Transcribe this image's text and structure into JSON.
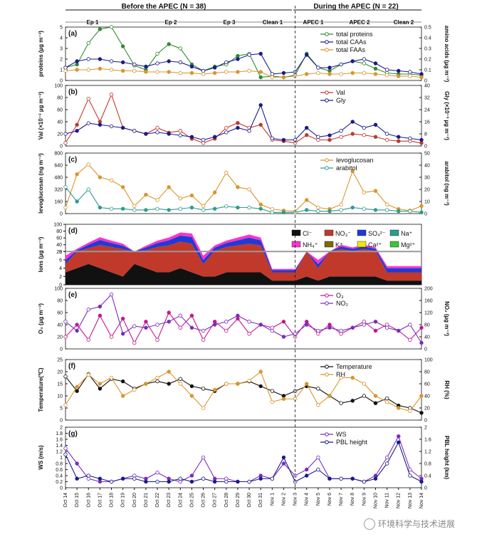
{
  "header": {
    "before_label": "Before the APEC (N = 38)",
    "during_label": "During the APEC (N = 22)",
    "episodes": [
      "Ep 1",
      "Ep 2",
      "Ep 3",
      "Clean 1",
      "APEC 1",
      "APEC 2",
      "Clean 2"
    ]
  },
  "dates": [
    "Oct 14",
    "Oct 15",
    "Oct 16",
    "Oct 17",
    "Oct 18",
    "Oct 19",
    "Oct 20",
    "Oct 21",
    "Oct 22",
    "Oct 23",
    "Oct 24",
    "Oct 25",
    "Oct 26",
    "Oct 27",
    "Oct 28",
    "Oct 29",
    "Oct 30",
    "Oct 31",
    "Nov 1",
    "Nov 2",
    "Nov 3",
    "Nov 4",
    "Nov 5",
    "Nov 6",
    "Nov 7",
    "Nov 8",
    "Nov 9",
    "Nov 10",
    "Nov 11",
    "Nov 12",
    "Nov 13",
    "Nov 14"
  ],
  "watermark": "环境科学与技术进展",
  "colors": {
    "green": "#2e8b2e",
    "navy": "#1a1a8c",
    "orange": "#d9952b",
    "red": "#c0392b",
    "teal": "#2a9d8f",
    "magenta": "#c2188f",
    "purple": "#7b2cbf",
    "black": "#111111",
    "blue": "#1f3bd6",
    "yellow": "#f2e600",
    "lgreen": "#3cc43c",
    "pink": "#ff33cc",
    "olive": "#7a6a00"
  },
  "chart_data": [
    {
      "type": "line",
      "panel": "(a)",
      "ylabel": "proteins (µg m⁻³)",
      "ylabel_right": "amino acids (µg m⁻³)",
      "ylim": [
        0,
        5
      ],
      "ylim_right": [
        0,
        0.5
      ],
      "yticks": [
        0,
        1,
        2,
        3,
        4,
        5
      ],
      "yticks_right": [
        0,
        0.1,
        0.2,
        0.3,
        0.4,
        0.5
      ],
      "legend_position": "top-right",
      "series": [
        {
          "name": "total proteins",
          "axis": "left",
          "color": "green",
          "values": [
            1.2,
            1.5,
            3.5,
            4.8,
            5.0,
            3.2,
            1.4,
            1.0,
            2.5,
            3.4,
            3.0,
            1.5,
            0.9,
            1.3,
            1.5,
            2.3,
            2.5,
            0.3,
            0.4,
            0.3,
            0.5,
            2.5,
            1.2,
            0.9,
            1.5,
            1.8,
            1.6,
            1.1,
            0.7,
            0.6,
            0.6,
            0.5
          ]
        },
        {
          "name": "total CAAs",
          "axis": "right",
          "color": "navy",
          "values": [
            0.12,
            0.18,
            0.2,
            0.2,
            0.18,
            0.17,
            0.15,
            0.13,
            0.16,
            0.18,
            0.17,
            0.13,
            0.09,
            0.12,
            0.17,
            0.2,
            0.24,
            0.25,
            0.06,
            0.07,
            0.08,
            0.24,
            0.12,
            0.12,
            0.15,
            0.18,
            0.2,
            0.16,
            0.1,
            0.09,
            0.08,
            0.06
          ]
        },
        {
          "name": "total FAAs",
          "axis": "right",
          "color": "orange",
          "values": [
            0.09,
            0.1,
            0.1,
            0.11,
            0.1,
            0.09,
            0.09,
            0.08,
            0.08,
            0.08,
            0.07,
            0.07,
            0.06,
            0.07,
            0.08,
            0.08,
            0.09,
            0.08,
            0.03,
            0.03,
            0.04,
            0.06,
            0.07,
            0.06,
            0.06,
            0.07,
            0.07,
            0.06,
            0.05,
            0.04,
            0.04,
            0.03
          ]
        }
      ]
    },
    {
      "type": "line",
      "panel": "(b)",
      "ylabel": "Val (×10⁻³ µg m⁻³)",
      "ylabel_right": "Gly (×10⁻³ µg m⁻³)",
      "ylim": [
        0,
        100
      ],
      "ylim_right": [
        0,
        40
      ],
      "yticks": [
        0,
        20,
        40,
        60,
        80,
        100
      ],
      "yticks_right": [
        0,
        8,
        16,
        24,
        32,
        40
      ],
      "legend_position": "top-right",
      "series": [
        {
          "name": "Val",
          "axis": "left",
          "color": "red",
          "values": [
            5,
            35,
            78,
            40,
            85,
            30,
            25,
            20,
            30,
            22,
            25,
            12,
            5,
            12,
            30,
            38,
            30,
            35,
            10,
            8,
            5,
            18,
            10,
            10,
            15,
            20,
            18,
            15,
            10,
            8,
            8,
            5
          ]
        },
        {
          "name": "Gly",
          "axis": "right",
          "color": "navy",
          "values": [
            8,
            10,
            15,
            14,
            13,
            12,
            10,
            8,
            9,
            8,
            7,
            6,
            4,
            6,
            9,
            12,
            10,
            27,
            5,
            4,
            4,
            12,
            6,
            7,
            10,
            16,
            12,
            14,
            8,
            6,
            5,
            4
          ]
        }
      ]
    },
    {
      "type": "line",
      "panel": "(c)",
      "ylabel": "levoglucosan (ng m⁻³)",
      "ylabel_right": "arabitol (ng m⁻³)",
      "ylim": [
        0,
        800
      ],
      "ylim_right": [
        0,
        50
      ],
      "yticks": [
        0,
        160,
        320,
        480,
        640,
        800
      ],
      "yticks_right": [
        0,
        10,
        20,
        30,
        40,
        50
      ],
      "legend_position": "top-right",
      "series": [
        {
          "name": "levoglucosan",
          "axis": "left",
          "color": "orange",
          "values": [
            80,
            520,
            650,
            480,
            440,
            350,
            100,
            250,
            180,
            350,
            200,
            240,
            100,
            280,
            540,
            350,
            320,
            120,
            60,
            40,
            30,
            180,
            80,
            60,
            120,
            560,
            280,
            300,
            120,
            60,
            40,
            100
          ]
        },
        {
          "name": "arabitol",
          "axis": "right",
          "color": "teal",
          "values": [
            22,
            10,
            20,
            5,
            4,
            4,
            3,
            3,
            4,
            3,
            4,
            5,
            3,
            4,
            6,
            5,
            5,
            4,
            1,
            1,
            1,
            3,
            2,
            2,
            3,
            5,
            4,
            3,
            3,
            2,
            2,
            1
          ]
        }
      ]
    },
    {
      "type": "area",
      "panel": "(d)",
      "ylabel": "Ions (µg m⁻³)",
      "yticks": [
        0,
        2,
        4,
        6,
        8,
        20,
        40,
        60,
        80,
        100
      ],
      "scale": "broken axis (0–8 and 20–100)",
      "legend_position": "top-right",
      "legend": [
        "Cl⁻",
        "NO₃⁻",
        "SO₄²⁻",
        "Na⁺",
        "NH₄⁺",
        "K⁺",
        "Ca²⁺",
        "Mg²⁺"
      ],
      "series": [
        {
          "name": "Cl⁻",
          "color": "black",
          "values": [
            3,
            4,
            5,
            4,
            3,
            2,
            5,
            4,
            3,
            3,
            4,
            3,
            2,
            2,
            3,
            3,
            3,
            3,
            1,
            1,
            1,
            2,
            1,
            2,
            2,
            2,
            2,
            2,
            1,
            1,
            1,
            1
          ]
        },
        {
          "name": "NO₃⁻",
          "color": "red",
          "values": [
            2,
            15,
            25,
            35,
            30,
            25,
            3,
            20,
            30,
            35,
            45,
            40,
            3,
            20,
            30,
            35,
            40,
            35,
            2,
            2,
            2,
            10,
            3,
            10,
            25,
            20,
            25,
            20,
            2,
            2,
            2,
            2
          ]
        },
        {
          "name": "SO₄²⁻",
          "color": "blue",
          "values": [
            1,
            5,
            10,
            15,
            12,
            10,
            1,
            8,
            12,
            15,
            18,
            20,
            1,
            10,
            12,
            15,
            18,
            15,
            0.5,
            0.5,
            0.5,
            3,
            1,
            3,
            8,
            6,
            8,
            6,
            1,
            1,
            1,
            1
          ]
        },
        {
          "name": "NH₄⁺",
          "color": "pink",
          "values": [
            1,
            4,
            6,
            8,
            7,
            6,
            1,
            5,
            7,
            8,
            9,
            10,
            1,
            6,
            7,
            8,
            9,
            8,
            0.3,
            0.3,
            0.3,
            2,
            1,
            2,
            5,
            4,
            5,
            4,
            0.5,
            0.5,
            0.5,
            0.5
          ]
        }
      ]
    },
    {
      "type": "line",
      "panel": "(e)",
      "ylabel": "O₃ (µg m⁻³)",
      "ylabel_right": "NO₂ (µg m⁻³)",
      "ylim": [
        0,
        100
      ],
      "ylim_right": [
        0,
        200
      ],
      "yticks": [
        0,
        20,
        40,
        60,
        80,
        100
      ],
      "yticks_right": [
        0,
        40,
        80,
        120,
        160,
        200
      ],
      "legend_position": "top-right",
      "series": [
        {
          "name": "O₃",
          "axis": "left",
          "color": "magenta",
          "values": [
            20,
            40,
            15,
            55,
            20,
            50,
            10,
            45,
            15,
            60,
            35,
            55,
            15,
            45,
            30,
            50,
            25,
            40,
            35,
            45,
            20,
            45,
            25,
            40,
            25,
            35,
            45,
            30,
            40,
            30,
            15,
            35
          ]
        },
        {
          "name": "NO₂",
          "axis": "right",
          "color": "purple",
          "values": [
            90,
            60,
            130,
            140,
            180,
            50,
            75,
            70,
            80,
            90,
            110,
            70,
            60,
            80,
            90,
            110,
            90,
            80,
            60,
            40,
            50,
            80,
            60,
            70,
            60,
            70,
            80,
            90,
            70,
            60,
            80,
            20
          ]
        }
      ]
    },
    {
      "type": "line",
      "panel": "(f)",
      "ylabel": "Temperature(℃)",
      "ylabel_right": "RH (%)",
      "ylim": [
        0,
        25
      ],
      "ylim_right": [
        0,
        100
      ],
      "yticks": [
        0,
        5,
        10,
        15,
        20,
        25
      ],
      "yticks_right": [
        0,
        20,
        40,
        60,
        80,
        100
      ],
      "legend_position": "top-right",
      "series": [
        {
          "name": "Temperature",
          "axis": "left",
          "color": "black",
          "values": [
            18,
            12,
            19,
            13,
            17,
            16,
            13,
            15,
            16,
            15,
            17,
            14,
            13,
            12,
            15,
            15,
            16,
            14,
            12,
            10,
            12,
            14,
            13,
            10,
            7,
            8,
            10,
            7,
            9,
            6,
            5,
            3
          ]
        },
        {
          "name": "RH",
          "axis": "right",
          "color": "orange",
          "values": [
            25,
            55,
            75,
            60,
            70,
            40,
            50,
            60,
            70,
            80,
            60,
            40,
            20,
            50,
            60,
            60,
            65,
            80,
            30,
            35,
            35,
            60,
            25,
            40,
            70,
            70,
            60,
            40,
            30,
            20,
            15,
            40
          ]
        }
      ]
    },
    {
      "type": "line",
      "panel": "(g)",
      "ylabel": "WS (m/s)",
      "ylabel_right": "PBL height (km)",
      "ylim": [
        0,
        2.0
      ],
      "ylim_right": [
        0,
        2.0
      ],
      "yticks": [
        0,
        0.2,
        0.4,
        0.6,
        0.8,
        1.0,
        1.2,
        1.4,
        1.6,
        1.8,
        2.0
      ],
      "yticks_right": [
        0,
        0.4,
        0.8,
        1.2,
        1.6,
        2.0
      ],
      "legend_position": "top-right",
      "series": [
        {
          "name": "WS",
          "axis": "left",
          "color": "purple",
          "values": [
            1.3,
            0.8,
            0.3,
            0.2,
            0.2,
            0.3,
            0.4,
            0.3,
            0.5,
            0.3,
            0.2,
            0.4,
            1.0,
            0.3,
            0.3,
            0.2,
            0.2,
            0.4,
            0.3,
            0.8,
            0.4,
            0.6,
            1.0,
            0.3,
            0.3,
            0.3,
            0.2,
            0.4,
            1.0,
            1.7,
            0.6,
            0.3
          ]
        },
        {
          "name": "PBL height",
          "axis": "right",
          "color": "navy",
          "values": [
            1.1,
            0.3,
            0.4,
            0.3,
            0.2,
            0.3,
            0.3,
            0.2,
            0.2,
            0.2,
            0.3,
            0.2,
            0.3,
            0.2,
            0.2,
            0.2,
            0.2,
            0.3,
            0.3,
            1.0,
            0.2,
            0.4,
            0.6,
            0.3,
            0.3,
            0.3,
            0.2,
            0.3,
            0.8,
            1.5,
            0.4,
            0.2
          ]
        }
      ]
    }
  ]
}
